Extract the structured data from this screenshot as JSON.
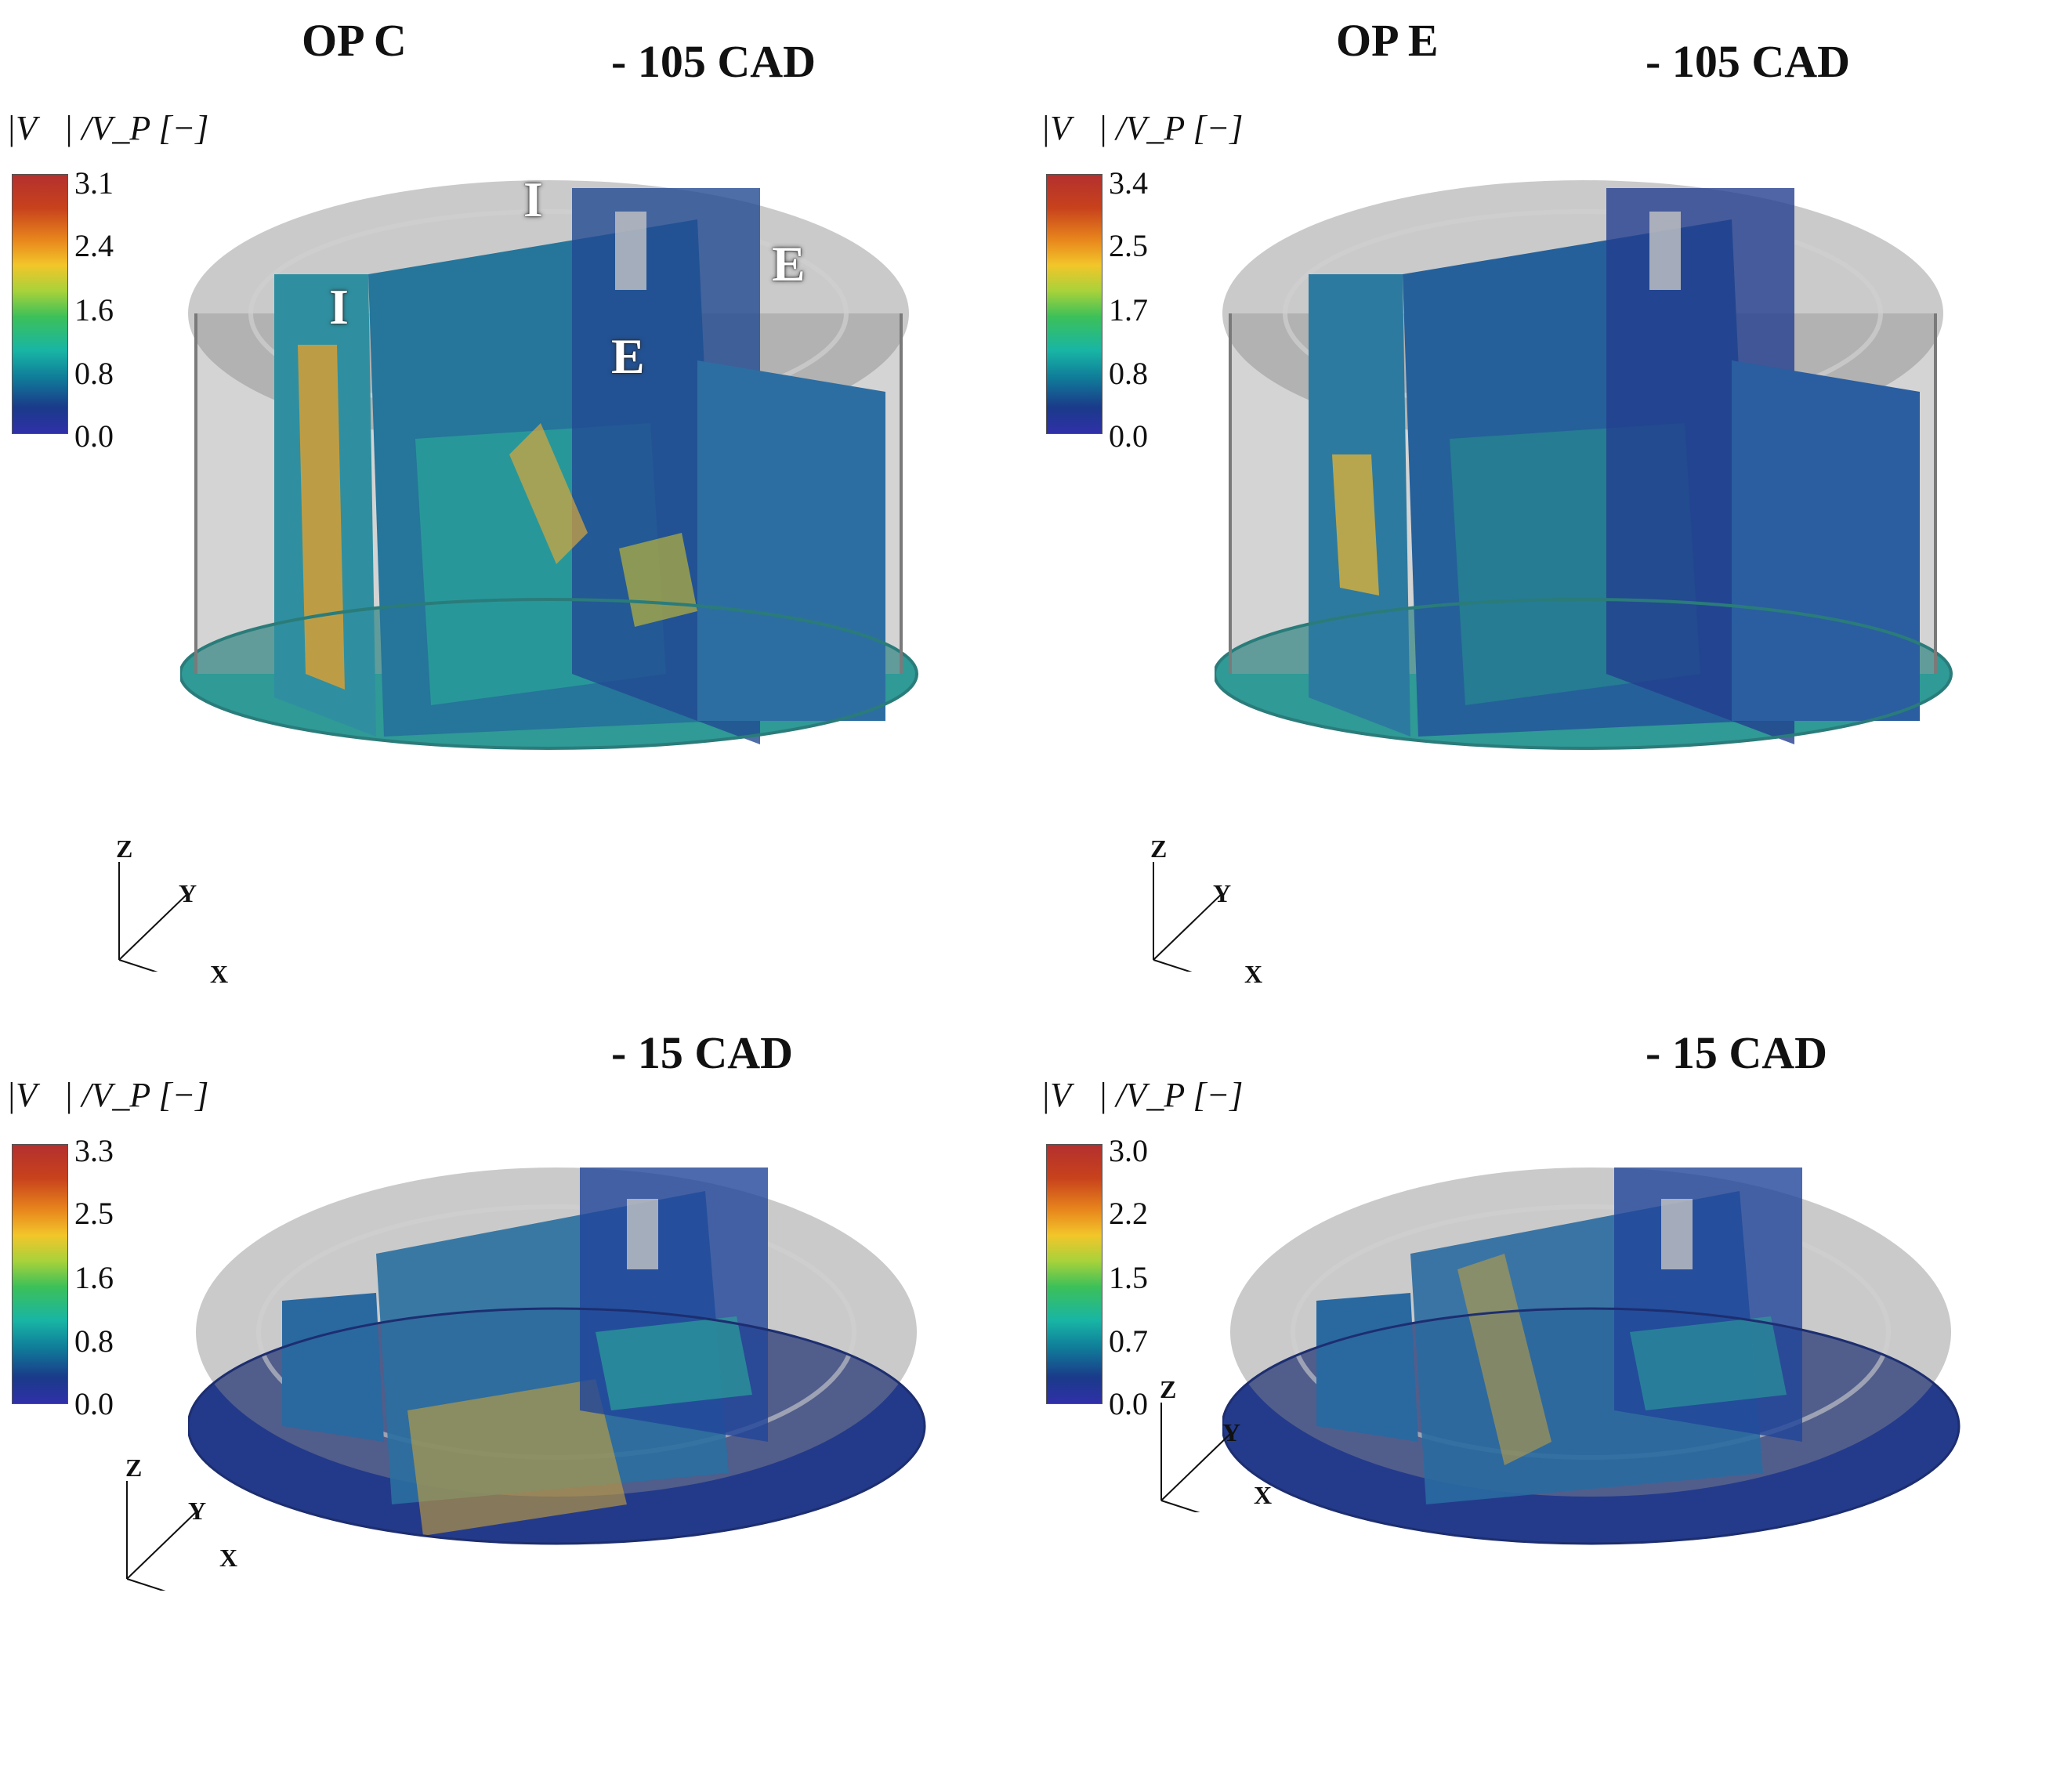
{
  "panels": [
    {
      "op_label": "OP C",
      "cad_label": "- 105 CAD",
      "colorbar": {
        "label": "|V⃗| /V_P [−]",
        "ticks": [
          "3.1",
          "2.4",
          "1.6",
          "0.8",
          "0.0"
        ]
      },
      "port_labels": [
        "I",
        "I",
        "E",
        "E"
      ],
      "axes": [
        "Z",
        "Y",
        "X"
      ]
    },
    {
      "op_label": "OP E",
      "cad_label": "- 105 CAD",
      "colorbar": {
        "label": "|V⃗| /V_P [−]",
        "ticks": [
          "3.4",
          "2.5",
          "1.7",
          "0.8",
          "0.0"
        ]
      },
      "axes": [
        "Z",
        "Y",
        "X"
      ]
    },
    {
      "op_label": "",
      "cad_label": "- 15 CAD",
      "colorbar": {
        "label": "|V⃗| /V_P [−]",
        "ticks": [
          "3.3",
          "2.5",
          "1.6",
          "0.8",
          "0.0"
        ]
      },
      "axes": [
        "Z",
        "Y",
        "X"
      ]
    },
    {
      "op_label": "",
      "cad_label": "- 15 CAD",
      "colorbar": {
        "label": "|V⃗| /V_P [−]",
        "ticks": [
          "3.0",
          "2.2",
          "1.5",
          "0.7",
          "0.0"
        ]
      },
      "axes": [
        "Z",
        "Y",
        "X"
      ]
    }
  ],
  "colors": {
    "low": "#2e2e9e",
    "mid": "#1fa8a0",
    "high": "#b4302e",
    "cylinder": "#9a9a9a"
  }
}
